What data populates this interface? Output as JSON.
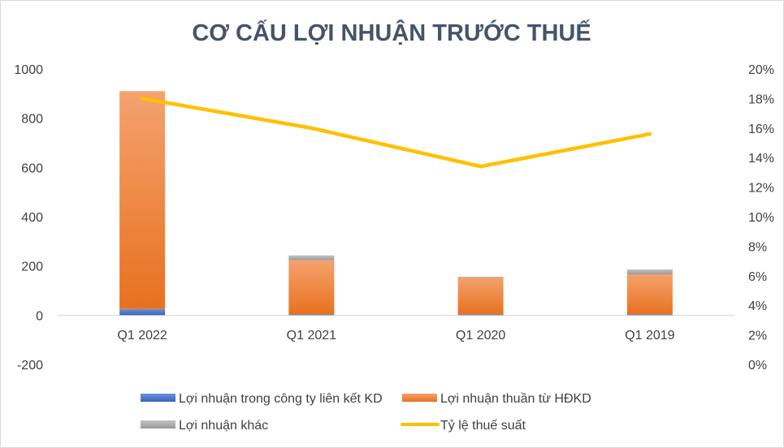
{
  "chart_data": {
    "type": "bar",
    "stacked": true,
    "title": "CƠ CẤU LỢI NHUẬN TRƯỚC THUẾ",
    "categories": [
      "Q1 2022",
      "Q1 2021",
      "Q1 2020",
      "Q1 2019"
    ],
    "series": [
      {
        "name": "Lợi nhuận trong công ty liên kết KD",
        "type": "bar",
        "axis": "left",
        "color": "#4472c4",
        "values": [
          25,
          3,
          3,
          3
        ]
      },
      {
        "name": "Lợi nhuận thuần từ HĐKD",
        "type": "bar",
        "axis": "left",
        "color": "#ed7d31",
        "values": [
          885,
          220,
          150,
          163
        ]
      },
      {
        "name": "Lợi nhuận khác",
        "type": "bar",
        "axis": "left",
        "color": "#a5a5a5",
        "values": [
          0,
          20,
          3,
          20
        ]
      },
      {
        "name": "Tỷ lệ thuế suất",
        "type": "line",
        "axis": "right",
        "color": "#ffc000",
        "values": [
          0.18,
          0.16,
          0.134,
          0.156
        ]
      }
    ],
    "y_left": {
      "min": -200,
      "max": 1000,
      "step": 200,
      "ticks": [
        "-200",
        "0",
        "200",
        "400",
        "600",
        "800",
        "1000"
      ]
    },
    "y_right": {
      "min": 0,
      "max": 0.2,
      "step": 0.02,
      "ticks": [
        "0%",
        "2%",
        "4%",
        "6%",
        "8%",
        "10%",
        "12%",
        "14%",
        "16%",
        "18%",
        "20%"
      ]
    },
    "grid": false,
    "legend_position": "bottom",
    "legend": [
      "Lợi nhuận trong công ty liên kết KD",
      "Lợi nhuận thuần từ HĐKD",
      "Lợi nhuận khác",
      "Tỷ lệ thuế suất"
    ]
  }
}
